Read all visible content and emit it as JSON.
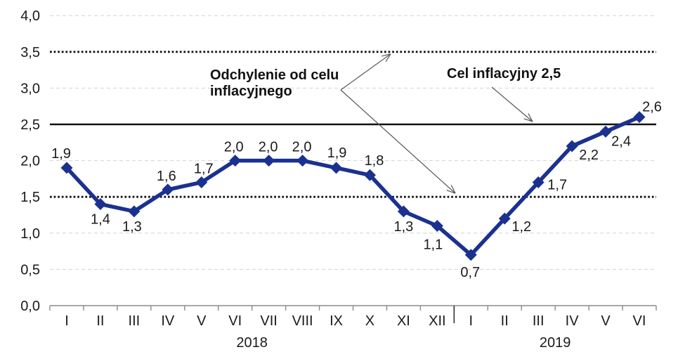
{
  "chart_data": {
    "type": "line",
    "x_groups": [
      {
        "year": "2018",
        "months": [
          "I",
          "II",
          "III",
          "IV",
          "V",
          "VI",
          "VII",
          "VIII",
          "IX",
          "X",
          "XI",
          "XII"
        ]
      },
      {
        "year": "2019",
        "months": [
          "I",
          "II",
          "III",
          "IV",
          "V",
          "VI"
        ]
      }
    ],
    "values": [
      1.9,
      1.4,
      1.3,
      1.6,
      1.7,
      2.0,
      2.0,
      2.0,
      1.9,
      1.8,
      1.3,
      1.1,
      0.7,
      1.2,
      1.7,
      2.2,
      2.4,
      2.6
    ],
    "value_labels": [
      "1,9",
      "1,4",
      "1,3",
      "1,6",
      "1,7",
      "2,0",
      "2,0",
      "2,0",
      "1,9",
      "1,8",
      "1,3",
      "1,1",
      "0,7",
      "1,2",
      "1,7",
      "2,2",
      "2,4",
      "2,6"
    ],
    "ylim": [
      0,
      4
    ],
    "ytick_step": 0.5,
    "ytick_labels": [
      "0,0",
      "0,5",
      "1,0",
      "1,5",
      "2,0",
      "2,5",
      "3,0",
      "3,5",
      "4,0"
    ],
    "reference_lines": [
      {
        "value": 2.5,
        "style": "solid"
      },
      {
        "value": 3.5,
        "style": "dotted"
      },
      {
        "value": 1.5,
        "style": "dotted"
      }
    ],
    "annotations": [
      {
        "text": "Odchylenie od celu inflacyjnego",
        "targets": [
          3.5,
          1.5
        ]
      },
      {
        "text": "Cel inflacyjny 2,5",
        "targets": [
          2.5
        ]
      }
    ],
    "grid": true,
    "legend": "none",
    "colors": {
      "line": "#1b3190",
      "text": "#1a1a1a",
      "axis": "#8c8c8c",
      "grid_light": "#d2d2d2",
      "ref_line": "#111111",
      "arrow": "#555555"
    }
  }
}
